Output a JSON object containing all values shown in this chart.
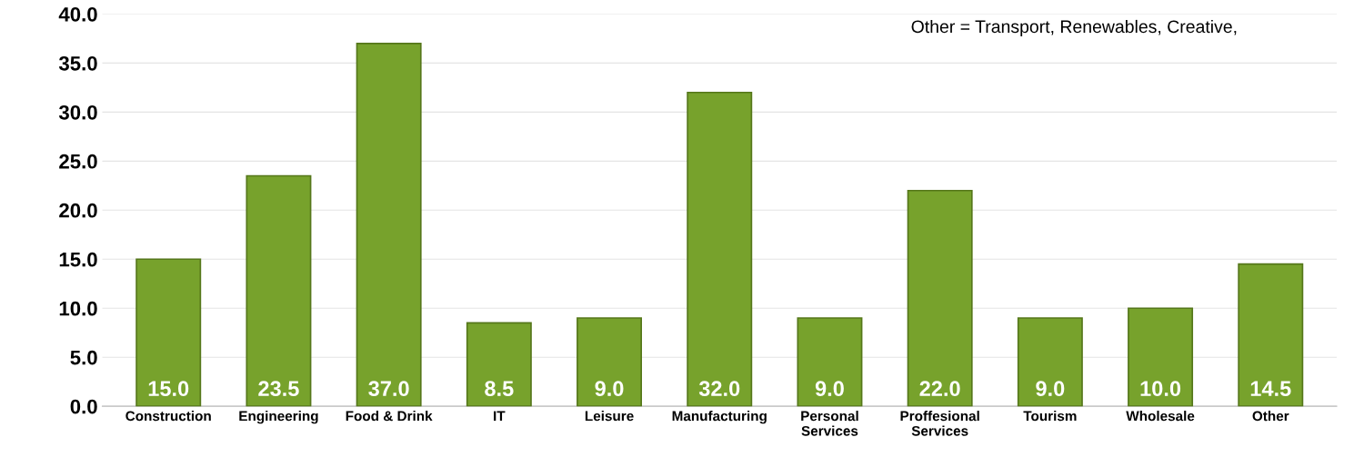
{
  "chart_data": {
    "type": "bar",
    "categories": [
      "Construction",
      "Engineering",
      "Food & Drink",
      "IT",
      "Leisure",
      "Manufacturing",
      "Personal\nServices",
      "Proffesional\nServices",
      "Tourism",
      "Wholesale",
      "Other"
    ],
    "values": [
      15.0,
      23.5,
      37.0,
      8.5,
      9.0,
      32.0,
      9.0,
      22.0,
      9.0,
      10.0,
      14.5
    ],
    "color": "#77a22c",
    "value_labels": [
      "15.0",
      "23.5",
      "37.0",
      "8.5",
      "9.0",
      "32.0",
      "9.0",
      "22.0",
      "9.0",
      "10.0",
      "14.5"
    ],
    "ylim": [
      0,
      40
    ],
    "yticks": [
      {
        "value": 0,
        "label": "0.0"
      },
      {
        "value": 5,
        "label": "5.0"
      },
      {
        "value": 10,
        "label": "10.0"
      },
      {
        "value": 15,
        "label": "15.0"
      },
      {
        "value": 20,
        "label": "20.0"
      },
      {
        "value": 25,
        "label": "25.0"
      },
      {
        "value": 30,
        "label": "30.0"
      },
      {
        "value": 35,
        "label": "35.0"
      },
      {
        "value": 40,
        "label": "40.0"
      }
    ],
    "grid": "y",
    "annotations": [
      "Other = Transport, Renewables, Creative,"
    ]
  }
}
